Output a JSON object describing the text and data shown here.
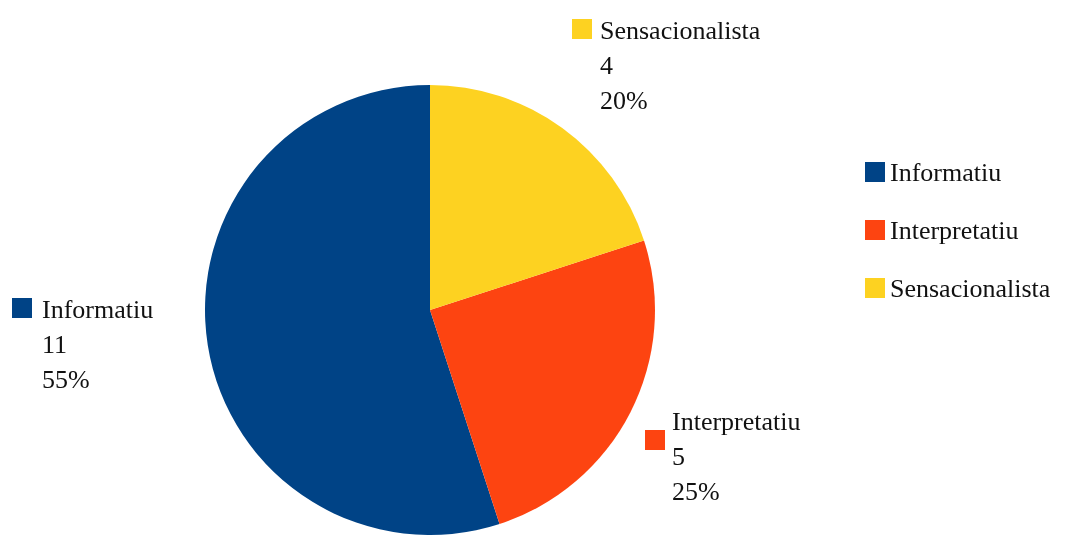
{
  "chart_data": {
    "type": "pie",
    "categories": [
      "Informatiu",
      "Interpretatiu",
      "Sensacionalista"
    ],
    "values": [
      11,
      5,
      4
    ],
    "colors": [
      "#004386",
      "#fd4411",
      "#fdd221"
    ],
    "value_labels": [
      "11\n55%",
      "5\n25%",
      "4\n20%"
    ],
    "legend": "right"
  }
}
